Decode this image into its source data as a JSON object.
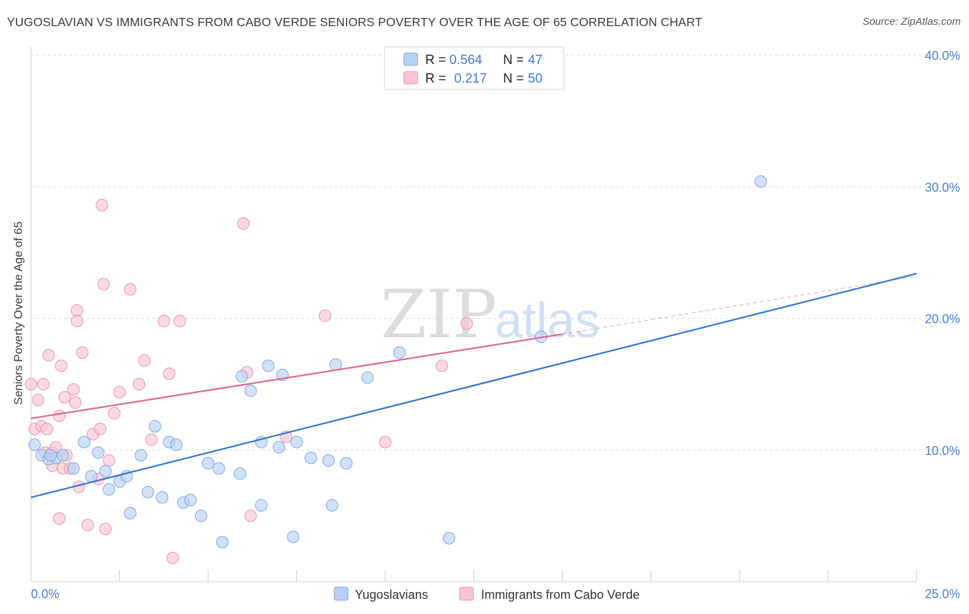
{
  "header": {
    "title": "YUGOSLAVIAN VS IMMIGRANTS FROM CABO VERDE SENIORS POVERTY OVER THE AGE OF 65 CORRELATION CHART",
    "source": "Source: ZipAtlas.com"
  },
  "watermark": {
    "zip": "ZIP",
    "atlas": "atlas"
  },
  "colors": {
    "blue_fill": "#b8d1f3",
    "blue_stroke": "#7ea6dc",
    "blue_line": "#2e74d0",
    "pink_fill": "#f7c4d3",
    "pink_stroke": "#e893ae",
    "pink_line": "#e0648e",
    "grid": "#d9d9d9",
    "tick_text": "#4a7fcf"
  },
  "legend": {
    "r_label": "R =",
    "n_label": "N =",
    "blue": {
      "r": "0.564",
      "n": "47"
    },
    "pink": {
      "r": "0.217",
      "n": "50"
    }
  },
  "chart_data": {
    "type": "scatter",
    "title": "YUGOSLAVIAN VS IMMIGRANTS FROM CABO VERDE SENIORS POVERTY OVER THE AGE OF 65 CORRELATION CHART",
    "xlabel": "",
    "ylabel": "Seniors Poverty Over the Age of 65",
    "xlim": [
      0,
      25
    ],
    "ylim": [
      0,
      40
    ],
    "x_tick_labels": [
      "0.0%",
      "25.0%"
    ],
    "y_ticks": [
      10,
      20,
      30,
      40
    ],
    "y_tick_labels": [
      "10.0%",
      "20.0%",
      "30.0%",
      "40.0%"
    ],
    "series": [
      {
        "name": "Yugoslavians",
        "color": "blue",
        "trend": {
          "x0": 0,
          "y0": 6.4,
          "x1": 25,
          "y1": 23.4
        },
        "points": [
          [
            0.1,
            10.4
          ],
          [
            0.3,
            9.6
          ],
          [
            0.5,
            9.3
          ],
          [
            0.7,
            9.4
          ],
          [
            0.9,
            9.6
          ],
          [
            1.2,
            8.6
          ],
          [
            1.5,
            10.6
          ],
          [
            1.7,
            8.0
          ],
          [
            1.9,
            9.8
          ],
          [
            2.1,
            8.4
          ],
          [
            2.2,
            7.0
          ],
          [
            2.5,
            7.6
          ],
          [
            2.7,
            8.0
          ],
          [
            2.8,
            5.2
          ],
          [
            3.1,
            9.6
          ],
          [
            3.3,
            6.8
          ],
          [
            3.5,
            11.8
          ],
          [
            3.7,
            6.4
          ],
          [
            3.9,
            10.6
          ],
          [
            4.1,
            10.4
          ],
          [
            4.3,
            6.0
          ],
          [
            4.5,
            6.2
          ],
          [
            4.8,
            5.0
          ],
          [
            5.0,
            9.0
          ],
          [
            5.3,
            8.6
          ],
          [
            5.4,
            3.0
          ],
          [
            5.9,
            8.2
          ],
          [
            5.95,
            15.6
          ],
          [
            6.2,
            14.5
          ],
          [
            6.5,
            5.8
          ],
          [
            6.5,
            10.6
          ],
          [
            6.7,
            16.4
          ],
          [
            7.0,
            10.2
          ],
          [
            7.1,
            15.7
          ],
          [
            7.4,
            3.4
          ],
          [
            7.5,
            10.6
          ],
          [
            7.9,
            9.4
          ],
          [
            8.4,
            9.2
          ],
          [
            8.5,
            5.8
          ],
          [
            8.6,
            16.5
          ],
          [
            8.9,
            9.0
          ],
          [
            9.5,
            15.5
          ],
          [
            10.4,
            17.4
          ],
          [
            11.8,
            3.3
          ],
          [
            14.4,
            18.6
          ],
          [
            20.6,
            30.4
          ],
          [
            0.55,
            9.6
          ]
        ]
      },
      {
        "name": "Immigrants from Cabo Verde",
        "color": "pink",
        "trend": {
          "x0": 0,
          "y0": 12.4,
          "x1": 15,
          "y1": 18.8,
          "dash_x1": 25,
          "dash_y1": 23.2
        },
        "points": [
          [
            0.0,
            15.0
          ],
          [
            0.1,
            11.6
          ],
          [
            0.2,
            13.8
          ],
          [
            0.3,
            11.8
          ],
          [
            0.35,
            15.0
          ],
          [
            0.4,
            9.8
          ],
          [
            0.45,
            11.6
          ],
          [
            0.5,
            17.2
          ],
          [
            0.6,
            9.8
          ],
          [
            0.6,
            8.8
          ],
          [
            0.7,
            10.2
          ],
          [
            0.8,
            12.6
          ],
          [
            0.8,
            4.8
          ],
          [
            0.85,
            16.4
          ],
          [
            0.9,
            8.6
          ],
          [
            0.95,
            14.0
          ],
          [
            1.0,
            9.6
          ],
          [
            1.1,
            8.6
          ],
          [
            1.2,
            14.6
          ],
          [
            1.25,
            13.6
          ],
          [
            1.3,
            20.6
          ],
          [
            1.35,
            7.2
          ],
          [
            1.45,
            17.4
          ],
          [
            1.6,
            4.3
          ],
          [
            1.75,
            11.2
          ],
          [
            1.9,
            7.8
          ],
          [
            1.95,
            11.6
          ],
          [
            2.0,
            28.6
          ],
          [
            2.05,
            22.6
          ],
          [
            2.1,
            4.0
          ],
          [
            2.2,
            9.2
          ],
          [
            2.35,
            12.8
          ],
          [
            2.5,
            14.4
          ],
          [
            2.8,
            22.2
          ],
          [
            3.05,
            15.0
          ],
          [
            3.2,
            16.8
          ],
          [
            3.4,
            10.8
          ],
          [
            3.75,
            19.8
          ],
          [
            3.9,
            15.8
          ],
          [
            4.0,
            1.8
          ],
          [
            4.2,
            19.8
          ],
          [
            6.0,
            27.2
          ],
          [
            6.2,
            5.0
          ],
          [
            6.1,
            15.9
          ],
          [
            7.2,
            11.0
          ],
          [
            8.3,
            20.2
          ],
          [
            10.0,
            10.6
          ],
          [
            11.6,
            16.4
          ],
          [
            12.3,
            19.6
          ],
          [
            1.3,
            19.8
          ]
        ]
      }
    ]
  },
  "bottom_legend": {
    "items": [
      "Yugoslavians",
      "Immigrants from Cabo Verde"
    ]
  }
}
